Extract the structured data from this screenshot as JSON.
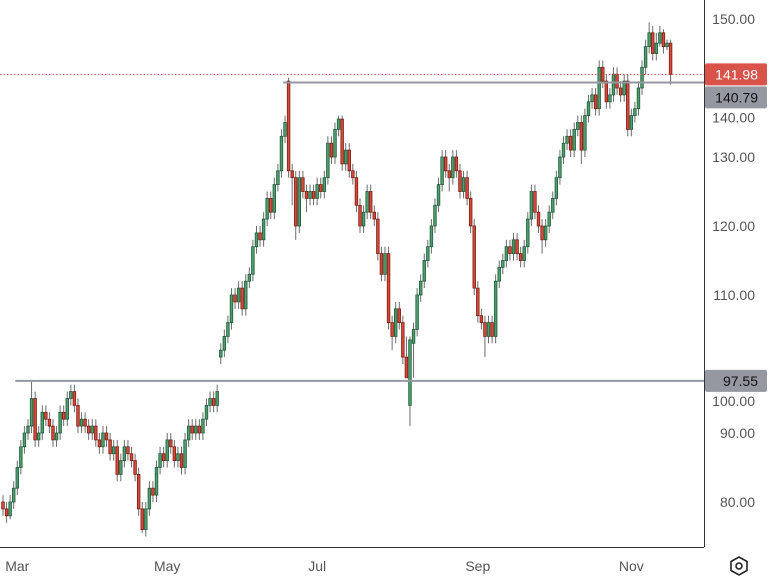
{
  "chart_data": {
    "type": "candlestick",
    "title": "",
    "xlabel": "",
    "ylabel": "",
    "ylim": [
      74.5,
      152.5
    ],
    "grid": false,
    "y_ticks": [
      "150.00",
      "140.00",
      "130.00",
      "120.00",
      "110.00",
      "100.00",
      "90.00",
      "80.00"
    ],
    "y_tick_values": [
      150,
      140,
      130,
      120,
      110,
      100,
      90,
      80
    ],
    "x_ticks": [
      {
        "label": "Mar",
        "index": 4
      },
      {
        "label": "May",
        "index": 46
      },
      {
        "label": "Jul",
        "index": 88
      },
      {
        "label": "Sep",
        "index": 133
      },
      {
        "label": "Nov",
        "index": 176
      }
    ],
    "ohlc_fields": [
      "open",
      "high",
      "low",
      "close"
    ],
    "candles": [
      [
        80,
        81,
        78,
        79
      ],
      [
        79,
        80,
        77,
        78
      ],
      [
        78,
        81,
        77.5,
        80
      ],
      [
        80,
        83,
        79,
        82
      ],
      [
        82,
        86,
        81,
        85
      ],
      [
        85,
        89,
        84,
        88
      ],
      [
        88,
        91,
        87,
        90
      ],
      [
        90,
        92,
        89,
        91
      ],
      [
        91,
        97.5,
        90,
        95
      ],
      [
        95,
        96,
        88,
        89
      ],
      [
        89,
        91,
        88,
        90
      ],
      [
        90,
        94,
        89,
        93
      ],
      [
        93,
        94,
        91,
        92
      ],
      [
        92,
        93,
        90,
        91
      ],
      [
        91,
        92,
        88,
        89
      ],
      [
        89,
        91,
        88,
        90
      ],
      [
        90,
        94,
        89,
        93
      ],
      [
        93,
        94,
        91,
        92
      ],
      [
        92,
        96,
        91,
        95
      ],
      [
        95,
        97,
        94,
        96
      ],
      [
        96,
        97,
        93,
        94
      ],
      [
        94,
        95,
        90,
        91
      ],
      [
        91,
        93,
        90,
        92
      ],
      [
        92,
        93,
        90,
        91
      ],
      [
        91,
        92,
        89,
        90
      ],
      [
        90,
        92,
        89,
        91
      ],
      [
        91,
        92,
        88,
        89
      ],
      [
        89,
        90,
        87,
        88
      ],
      [
        88,
        91,
        87,
        90
      ],
      [
        90,
        91,
        88,
        89
      ],
      [
        89,
        90,
        86,
        87
      ],
      [
        87,
        89,
        86,
        88
      ],
      [
        88,
        89,
        83,
        84
      ],
      [
        84,
        87,
        83,
        86
      ],
      [
        86,
        89,
        85,
        88
      ],
      [
        88,
        89,
        86,
        87
      ],
      [
        87,
        88,
        85,
        86
      ],
      [
        86,
        87,
        83,
        84
      ],
      [
        84,
        85,
        78,
        79
      ],
      [
        79,
        80,
        75.5,
        76
      ],
      [
        76,
        80,
        75,
        79
      ],
      [
        79,
        83,
        78,
        82
      ],
      [
        82,
        83,
        80,
        81
      ],
      [
        81,
        86,
        80,
        85
      ],
      [
        85,
        88,
        84,
        87
      ],
      [
        87,
        88,
        85,
        86
      ],
      [
        86,
        90,
        85,
        89
      ],
      [
        89,
        90,
        87,
        88
      ],
      [
        88,
        89,
        85,
        86
      ],
      [
        86,
        88,
        85,
        87
      ],
      [
        87,
        88,
        84,
        85
      ],
      [
        85,
        90,
        84,
        89
      ],
      [
        89,
        92,
        88,
        91
      ],
      [
        91,
        92,
        89,
        90
      ],
      [
        90,
        92,
        89,
        91
      ],
      [
        91,
        92,
        89,
        90
      ],
      [
        90,
        93,
        89,
        92
      ],
      [
        92,
        95,
        91,
        94
      ],
      [
        94,
        96,
        93,
        95
      ],
      [
        95,
        96,
        93,
        94
      ],
      [
        94,
        97,
        93,
        96
      ],
      [
        101,
        103,
        100,
        102
      ],
      [
        102,
        105,
        101,
        104
      ],
      [
        104,
        107,
        103,
        106
      ],
      [
        106,
        111,
        105,
        110
      ],
      [
        110,
        111,
        108,
        109
      ],
      [
        109,
        112,
        108,
        111
      ],
      [
        111,
        112,
        107,
        108
      ],
      [
        108,
        113,
        107,
        112
      ],
      [
        112,
        114,
        111,
        113
      ],
      [
        113,
        118,
        112,
        117
      ],
      [
        117,
        120,
        116,
        119
      ],
      [
        119,
        120,
        117,
        118
      ],
      [
        118,
        122,
        117,
        121
      ],
      [
        121,
        125,
        120,
        124
      ],
      [
        124,
        125,
        121,
        122
      ],
      [
        122,
        127,
        121,
        126
      ],
      [
        126,
        129,
        125,
        128
      ],
      [
        128,
        134,
        127,
        133
      ],
      [
        133,
        136,
        132,
        135
      ],
      [
        141,
        141.5,
        127,
        128
      ],
      [
        128,
        129,
        123,
        127
      ],
      [
        127,
        128,
        118,
        120
      ],
      [
        120,
        128,
        119,
        127
      ],
      [
        127,
        128,
        124,
        125
      ],
      [
        125,
        126,
        122,
        124
      ],
      [
        124,
        126,
        123,
        125
      ],
      [
        125,
        126,
        123,
        124
      ],
      [
        124,
        127,
        123,
        126
      ],
      [
        126,
        127,
        124,
        125
      ],
      [
        125,
        128,
        124,
        127
      ],
      [
        127,
        133,
        126,
        132
      ],
      [
        132,
        133,
        129,
        130
      ],
      [
        130,
        135,
        129,
        134
      ],
      [
        134,
        136,
        133,
        135.5
      ],
      [
        135.5,
        136,
        128,
        129
      ],
      [
        129,
        132,
        128,
        131
      ],
      [
        131,
        132,
        127,
        128
      ],
      [
        128,
        129,
        126,
        127
      ],
      [
        127,
        128,
        122,
        123
      ],
      [
        123,
        124,
        119,
        120
      ],
      [
        120,
        123,
        119,
        122
      ],
      [
        122,
        126,
        121,
        125
      ],
      [
        125,
        126,
        121,
        122
      ],
      [
        122,
        123,
        120,
        121
      ],
      [
        121,
        122,
        115,
        116
      ],
      [
        116,
        117,
        112,
        113
      ],
      [
        113,
        117,
        112,
        116
      ],
      [
        116,
        117,
        105,
        106
      ],
      [
        106,
        107,
        102,
        104
      ],
      [
        104,
        109,
        103,
        108
      ],
      [
        108,
        109,
        105,
        106
      ],
      [
        106,
        107,
        100,
        101
      ],
      [
        101,
        104,
        98,
        98
      ],
      [
        94,
        104,
        91,
        103.5
      ],
      [
        103,
        106,
        98,
        105
      ],
      [
        105,
        111,
        104,
        110
      ],
      [
        110,
        113,
        109,
        112
      ],
      [
        112,
        116,
        111,
        115
      ],
      [
        115,
        118,
        114,
        117
      ],
      [
        117,
        121,
        116,
        120
      ],
      [
        120,
        124,
        119,
        123
      ],
      [
        123,
        127,
        122,
        126
      ],
      [
        126,
        131,
        125,
        130
      ],
      [
        130,
        131,
        127,
        128
      ],
      [
        128,
        129,
        125,
        127
      ],
      [
        127,
        131,
        126,
        130
      ],
      [
        130,
        131,
        127,
        128
      ],
      [
        128,
        129,
        124,
        125
      ],
      [
        125,
        128,
        124,
        127
      ],
      [
        127,
        128,
        123,
        124
      ],
      [
        124,
        125,
        119,
        120
      ],
      [
        120,
        121,
        110,
        111
      ],
      [
        111,
        112,
        106,
        107
      ],
      [
        107,
        108,
        105,
        106
      ],
      [
        106,
        107,
        101,
        104
      ],
      [
        104,
        107,
        103,
        106
      ],
      [
        106,
        107,
        103,
        104
      ],
      [
        104,
        113,
        103,
        112
      ],
      [
        112,
        115,
        111,
        114
      ],
      [
        114,
        116,
        113,
        115
      ],
      [
        115,
        118,
        114,
        117
      ],
      [
        117,
        118,
        115,
        116
      ],
      [
        116,
        119,
        115,
        118
      ],
      [
        118,
        119,
        115,
        116
      ],
      [
        116,
        117,
        114,
        115
      ],
      [
        115,
        118,
        114,
        117
      ],
      [
        117,
        122,
        116,
        121
      ],
      [
        121,
        126,
        120,
        125
      ],
      [
        125,
        126,
        121,
        122
      ],
      [
        122,
        123,
        119,
        120
      ],
      [
        120,
        121,
        116,
        118
      ],
      [
        118,
        121,
        117,
        120
      ],
      [
        120,
        123,
        119,
        122
      ],
      [
        122,
        125,
        121,
        124
      ],
      [
        124,
        128,
        123,
        127
      ],
      [
        127,
        131,
        126,
        130
      ],
      [
        130,
        133,
        129,
        132
      ],
      [
        132,
        134,
        131,
        133
      ],
      [
        133,
        134,
        130,
        131
      ],
      [
        131,
        135,
        130,
        134
      ],
      [
        134,
        136,
        133,
        135
      ],
      [
        135,
        136,
        129,
        131
      ],
      [
        131,
        137,
        130,
        136
      ],
      [
        136,
        139,
        135,
        138
      ],
      [
        138,
        140,
        137,
        139
      ],
      [
        139,
        140,
        136,
        137
      ],
      [
        137,
        144,
        136,
        143
      ],
      [
        143,
        144,
        140,
        141
      ],
      [
        141,
        142,
        137,
        138
      ],
      [
        138,
        140,
        137,
        139
      ],
      [
        139,
        143,
        138,
        142
      ],
      [
        142,
        143,
        139,
        140
      ],
      [
        140,
        141,
        138,
        139
      ],
      [
        139,
        142,
        138,
        141
      ],
      [
        141,
        142,
        133,
        134
      ],
      [
        134,
        137,
        133,
        136
      ],
      [
        136,
        138,
        135,
        137
      ],
      [
        137,
        141,
        136,
        140
      ],
      [
        140,
        144,
        139,
        143
      ],
      [
        143,
        147,
        142,
        146
      ],
      [
        146,
        149.5,
        145,
        148
      ],
      [
        148,
        149,
        144,
        145
      ],
      [
        145,
        148,
        144,
        146.5
      ],
      [
        146.5,
        149,
        146,
        148
      ],
      [
        148,
        148.5,
        145,
        146
      ],
      [
        146,
        147,
        145.5,
        146.5
      ],
      [
        146.5,
        147,
        140.5,
        141.98
      ]
    ],
    "last_price": {
      "value": 141.98,
      "label": "141.98",
      "color": "#d9534a"
    },
    "horizontal_lines": [
      {
        "value": 140.79,
        "label": "140.79",
        "start_index": 79,
        "color": "#9598a1"
      },
      {
        "value": 97.55,
        "label": "97.55",
        "start_index": 4,
        "color": "#9598a1"
      }
    ],
    "colors": {
      "up": "#4f9d6c",
      "up_border": "#1f5c3b",
      "down": "#d64a3a",
      "down_border": "#7d1c12",
      "wick": "#6b6b6b"
    }
  },
  "settings_icon": "gear-hexagon-icon"
}
